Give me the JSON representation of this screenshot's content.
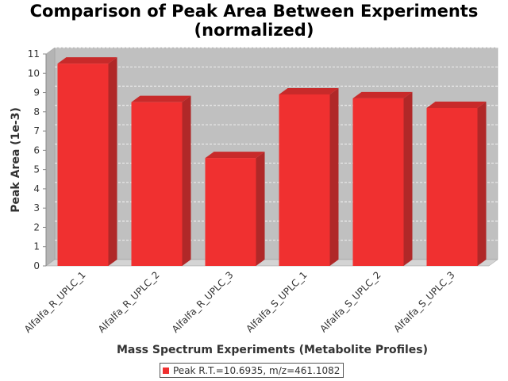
{
  "chart_data": {
    "type": "bar",
    "title_line1": "Comparison of Peak Area Between Experiments",
    "title_line2": "(normalized)",
    "xlabel": "Mass Spectrum Experiments (Metabolite Profiles)",
    "ylabel": "Peak Area (1e-3)",
    "categories": [
      "Alfalfa_R_UPLC_1",
      "Alfalfa_R_UPLC_2",
      "Alfalfa_R_UPLC_3",
      "Alfalfa_S_UPLC_1",
      "Alfalfa_S_UPLC_2",
      "Alfalfa_S_UPLC_3"
    ],
    "series": [
      {
        "name": "Peak R.T.=10.6935, m/z=461.1082",
        "values": [
          10.5,
          8.5,
          5.6,
          8.9,
          8.7,
          8.2
        ]
      }
    ],
    "ylim": [
      0,
      11
    ],
    "yticks": [
      "0",
      "1",
      "2",
      "3",
      "4",
      "5",
      "6",
      "7",
      "8",
      "9",
      "10",
      "11"
    ],
    "grid": true,
    "legend_position": "bottom",
    "colors": {
      "bar": "#f03030",
      "bar_top": "#c82a2a",
      "bar_side": "#b02828",
      "plot_bg": "#c0c0c0"
    }
  }
}
